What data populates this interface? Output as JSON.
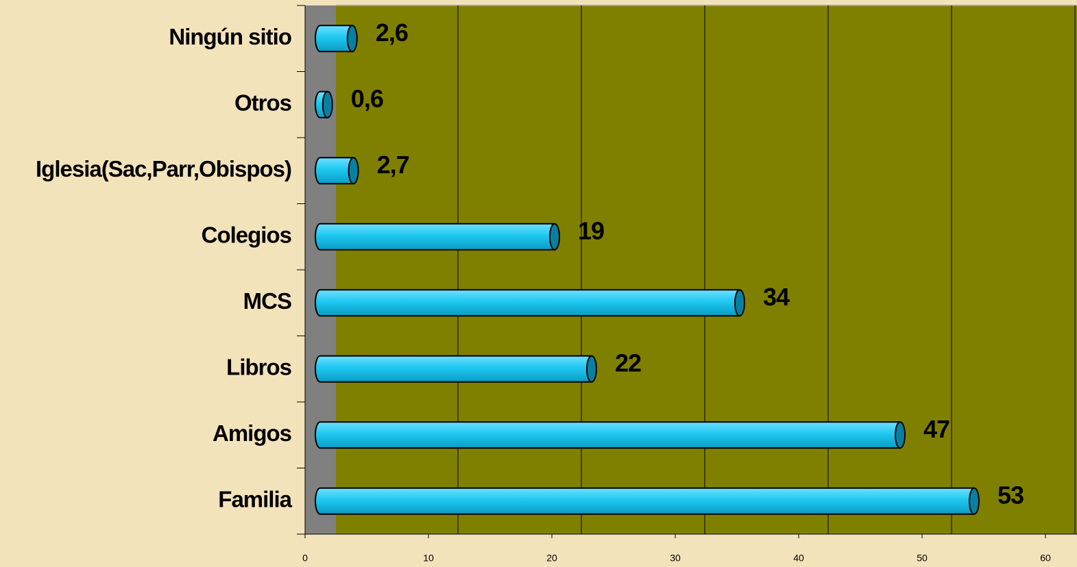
{
  "chart_data": {
    "type": "bar",
    "orientation": "horizontal",
    "categories": [
      "Ningún sitio",
      "Otros",
      "Iglesia(Sac,Parr,Obispos)",
      "Colegios",
      "MCS",
      "Libros",
      "Amigos",
      "Familia"
    ],
    "values": [
      2.6,
      0.6,
      2.7,
      19,
      34,
      22,
      47,
      53
    ],
    "value_labels": [
      "2,6",
      "0,6",
      "2,7",
      "19",
      "34",
      "22",
      "47",
      "53"
    ],
    "color": "#1ec8f0",
    "xlim": [
      0,
      60
    ],
    "xticks": [
      0,
      10,
      20,
      30,
      40,
      50,
      60
    ],
    "grid": true
  }
}
